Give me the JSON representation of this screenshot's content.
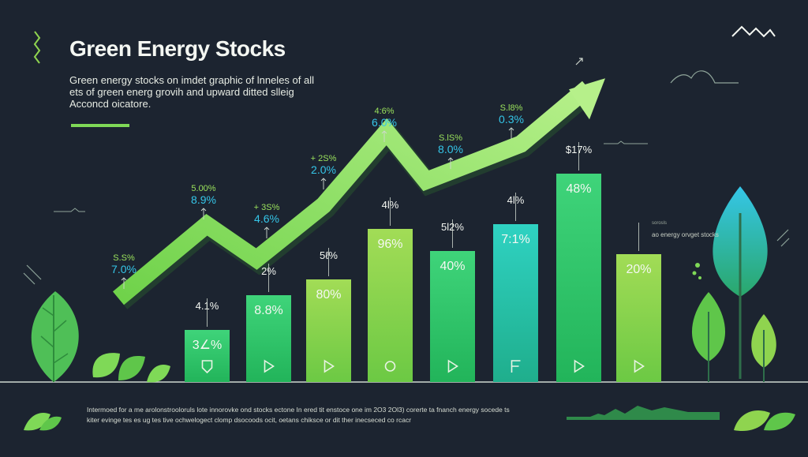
{
  "header": {
    "title": "Green Energy Stocks",
    "subtitle": "Green energy stocks on imdet graphic of lnneles of all ets of green energ grovih and upward ditted slleig Acconcd oicatore."
  },
  "footnote": "Intermoed for a me arolonstrooloruls lote innorovke ond stocks ectone In ered tit enstoce one im 2O3 2Ol3) corerte ta fnanch energy socede ts kiter evinge tes es ug tes tive ochwelogect clomp dsocoods ocit, oetans chiksce or dit ther inecseced co rcacr",
  "side_label": {
    "small": "sorosls",
    "text": "ao energy orvget stocks"
  },
  "colors": {
    "background": "#1c2430",
    "accent": "#7fd957",
    "bar_light": "#8fd44f",
    "bar_mid": "#3fcf6b",
    "bar_teal": "#2ec8b0",
    "arrow": "#8ee060",
    "label_blue": "#35c6e8",
    "label_green": "#9be35c"
  },
  "icons": [
    "logo-mountain-icon",
    "leaf-icon",
    "tree-icon",
    "play-icon",
    "circle-icon",
    "f-icon",
    "trend-arrow-icon"
  ],
  "chart_data": {
    "type": "bar",
    "categories": [
      "",
      "",
      "",
      "",
      "",
      "",
      "",
      ""
    ],
    "values": [
      3.2,
      8.8,
      80,
      96,
      40,
      7.1,
      48,
      20
    ],
    "value_labels": [
      "3∠%",
      "8.8%",
      "80%",
      "96%",
      "40%",
      "7:1%",
      "48%",
      "20%"
    ],
    "top_labels": [
      "4.1%",
      "2%",
      "5ℓ%",
      "4l%",
      "5l2%",
      "4l%",
      "$17%",
      ""
    ],
    "bar_icons": [
      "shield-icon",
      "play-icon",
      "play-icon",
      "circle-icon",
      "play-icon",
      "f-icon",
      "play-icon",
      "play-icon"
    ],
    "trend_labels": [
      {
        "line1": "S.S%",
        "line2": "7.0%"
      },
      {
        "line1": "5.00%",
        "line2": "8.9%"
      },
      {
        "line1": "+ 3S%",
        "line2": "4.6%"
      },
      {
        "line1": "+ 2S%",
        "line2": "2.0%"
      },
      {
        "line1": "4:6%",
        "line2": "6.0%"
      },
      {
        "line1": "S.lS%",
        "line2": "8.0%"
      },
      {
        "line1": "S.l8%",
        "line2": "0.3%"
      }
    ],
    "trend": [
      12,
      42,
      28,
      50,
      80,
      60,
      75,
      98
    ],
    "title": "Green Energy Stocks",
    "xlabel": "",
    "ylabel": "",
    "ylim": [
      0,
      100
    ],
    "grid": false,
    "legend": "none"
  }
}
